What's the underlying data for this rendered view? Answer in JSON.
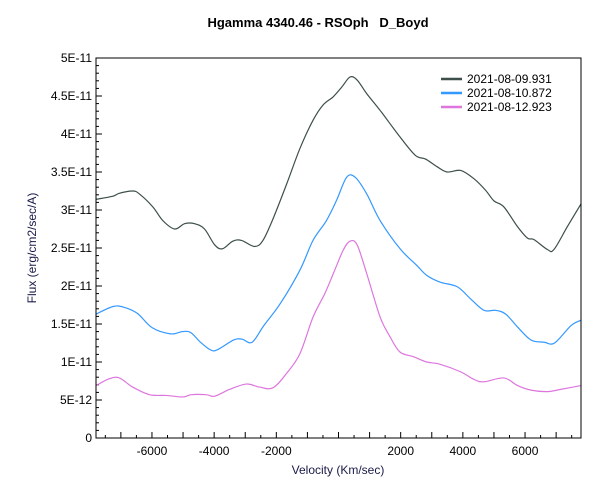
{
  "chart_data": {
    "type": "line",
    "title": "Hgamma 4340.46 - RSOph   D_Boyd",
    "xlabel": "Velocity (Km/sec)",
    "ylabel": "Flux (erg/cm2/sec/A)",
    "xlim": [
      -7800,
      7800
    ],
    "ylim": [
      0,
      5e-11
    ],
    "x_ticks": [
      -6000,
      -4000,
      -2000,
      2000,
      4000,
      6000
    ],
    "x_tick_labels": [
      "-6000",
      "-4000",
      "-2000",
      "2000",
      "4000",
      "6000"
    ],
    "y_ticks": [
      0,
      5e-12,
      1e-11,
      1.5e-11,
      2e-11,
      2.5e-11,
      3e-11,
      3.5e-11,
      4e-11,
      4.5e-11,
      5e-11
    ],
    "y_tick_labels": [
      "0",
      "5E-12",
      "1E-11",
      "1.5E-11",
      "2E-11",
      "2.5E-11",
      "3E-11",
      "3.5E-11",
      "4E-11",
      "4.5E-11",
      "5E-11"
    ],
    "grid": false,
    "legend_position": "top-right",
    "series": [
      {
        "name": "2021-08-09.931",
        "color": "#3d4f4b",
        "x": [
          -7800,
          -7270,
          -7050,
          -6620,
          -6400,
          -5970,
          -5650,
          -5270,
          -4950,
          -4630,
          -4310,
          -3980,
          -3730,
          -3400,
          -3120,
          -2700,
          -2430,
          -2100,
          -1660,
          -1240,
          -820,
          -500,
          -170,
          110,
          370,
          600,
          910,
          1340,
          1980,
          2470,
          2800,
          3170,
          3500,
          3930,
          4360,
          4730,
          5000,
          5320,
          5760,
          6080,
          6290,
          6720,
          6930,
          7360,
          7800
        ],
        "y": [
          3.14e-11,
          3.18e-11,
          3.22e-11,
          3.25e-11,
          3.21e-11,
          3.04e-11,
          2.86e-11,
          2.75e-11,
          2.82e-11,
          2.82e-11,
          2.75e-11,
          2.54e-11,
          2.49e-11,
          2.59e-11,
          2.6e-11,
          2.52e-11,
          2.6e-11,
          2.89e-11,
          3.35e-11,
          3.81e-11,
          4.18e-11,
          4.38e-11,
          4.49e-11,
          4.62e-11,
          4.75e-11,
          4.71e-11,
          4.53e-11,
          4.31e-11,
          3.96e-11,
          3.72e-11,
          3.67e-11,
          3.57e-11,
          3.5e-11,
          3.52e-11,
          3.41e-11,
          3.26e-11,
          3.12e-11,
          3.04e-11,
          2.78e-11,
          2.63e-11,
          2.61e-11,
          2.48e-11,
          2.48e-11,
          2.78e-11,
          3.08e-11
        ]
      },
      {
        "name": "2021-08-10.872",
        "color": "#3399ff",
        "x": [
          -7800,
          -7250,
          -6900,
          -6470,
          -5990,
          -5400,
          -5030,
          -4760,
          -4440,
          -4120,
          -3900,
          -3370,
          -3100,
          -2780,
          -2400,
          -1870,
          -1240,
          -820,
          -390,
          -60,
          260,
          540,
          910,
          1340,
          1980,
          2520,
          2840,
          3270,
          3820,
          4250,
          4680,
          5050,
          5380,
          5760,
          6190,
          6620,
          6950,
          7480,
          7800
        ],
        "y": [
          1.63e-11,
          1.73e-11,
          1.72e-11,
          1.64e-11,
          1.45e-11,
          1.37e-11,
          1.4e-11,
          1.39e-11,
          1.26e-11,
          1.16e-11,
          1.16e-11,
          1.29e-11,
          1.3e-11,
          1.26e-11,
          1.48e-11,
          1.77e-11,
          2.21e-11,
          2.6e-11,
          2.86e-11,
          3.13e-11,
          3.43e-11,
          3.43e-11,
          3.21e-11,
          2.86e-11,
          2.49e-11,
          2.27e-11,
          2.14e-11,
          2.05e-11,
          1.99e-11,
          1.83e-11,
          1.68e-11,
          1.68e-11,
          1.63e-11,
          1.46e-11,
          1.29e-11,
          1.26e-11,
          1.25e-11,
          1.48e-11,
          1.55e-11
        ]
      },
      {
        "name": "2021-08-12.923",
        "color": "#dd77dd",
        "x": [
          -7800,
          -7370,
          -7050,
          -6620,
          -6080,
          -5540,
          -5000,
          -4740,
          -4250,
          -3980,
          -3500,
          -2970,
          -2540,
          -2110,
          -1670,
          -1240,
          -820,
          -440,
          -170,
          150,
          370,
          600,
          910,
          1340,
          1660,
          1980,
          2410,
          2840,
          3270,
          3930,
          4360,
          4680,
          5320,
          5760,
          6190,
          6720,
          7150,
          7800
        ],
        "y": [
          6.9e-12,
          7.8e-12,
          7.9e-12,
          6.7e-12,
          5.7e-12,
          5.6e-12,
          5.4e-12,
          5.7e-12,
          5.7e-12,
          5.5e-12,
          6.4e-12,
          7.1e-12,
          6.7e-12,
          6.6e-12,
          8.5e-12,
          1.11e-11,
          1.59e-11,
          1.9e-11,
          2.16e-11,
          2.47e-11,
          2.59e-11,
          2.54e-11,
          2.16e-11,
          1.59e-11,
          1.33e-11,
          1.13e-11,
          1.07e-11,
          1e-11,
          9.7e-12,
          8.7e-12,
          7.7e-12,
          7.4e-12,
          7.9e-12,
          6.9e-12,
          6.3e-12,
          6.1e-12,
          6.4e-12,
          6.9e-12
        ]
      }
    ]
  }
}
